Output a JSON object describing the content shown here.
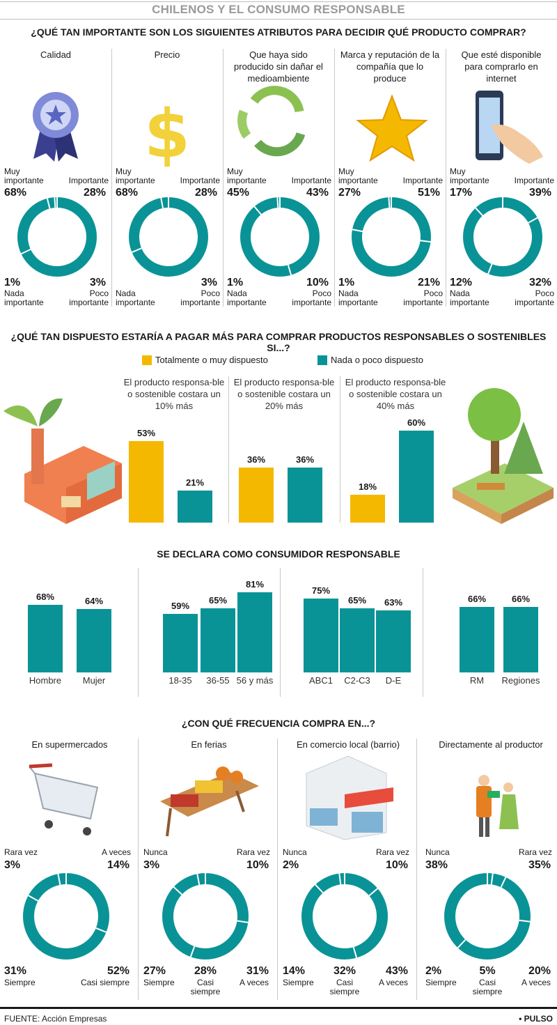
{
  "title": "CHILENOS Y EL CONSUMO RESPONSABLE",
  "colors": {
    "teal": "#0a9396",
    "yellow": "#f5b800",
    "grey_title": "#9a9a9a"
  },
  "footer": {
    "source": "FUENTE: Acción Empresas",
    "brand": "• PULSO"
  },
  "labels": {
    "muy": "Muy importante",
    "imp": "Importante",
    "nada": "Nada importante",
    "poco": "Poco importante",
    "rara": "Rara vez",
    "aveces": "A veces",
    "siempre": "Siempre",
    "casi": "Casi siempre",
    "nunca": "Nunca"
  },
  "section1": {
    "heading": "¿QUÉ TAN IMPORTANTE SON LOS SIGUIENTES ATRIBUTOS PARA DECIDIR QUÉ PRODUCTO COMPRAR?",
    "columns": [
      {
        "title": "Calidad",
        "icon": "medal-icon",
        "muy": "68%",
        "imp": "28%",
        "nada": "1%",
        "poco": "3%"
      },
      {
        "title": "Precio",
        "icon": "dollar-icon",
        "muy": "68%",
        "imp": "28%",
        "nada": "",
        "poco": "3%"
      },
      {
        "title": "Que haya sido producido sin dañar el medioambiente",
        "icon": "recycle-icon",
        "muy": "45%",
        "imp": "43%",
        "nada": "1%",
        "poco": "10%"
      },
      {
        "title": "Marca y reputación de la compañía que lo produce",
        "icon": "star-icon",
        "muy": "27%",
        "imp": "51%",
        "nada": "1%",
        "poco": "21%"
      },
      {
        "title": "Que esté disponible para comprarlo en internet",
        "icon": "smartphone-icon",
        "muy": "17%",
        "imp": "39%",
        "nada": "12%",
        "poco": "32%"
      }
    ]
  },
  "section2": {
    "heading": "¿QUÉ TAN DISPUESTO ESTARÍA A PAGAR MÁS PARA COMPRAR PRODUCTOS RESPONSABLES O SOSTENIBLES SI...?",
    "legend_yellow": "Totalmente o muy dispuesto",
    "legend_teal": "Nada o poco dispuesto",
    "scenarios": [
      {
        "title": "El producto responsa-ble o sostenible costara un 10% más",
        "yellow": "53%",
        "teal": "21%"
      },
      {
        "title": "El producto responsa-ble o sostenible costara un 20% más",
        "yellow": "36%",
        "teal": "36%"
      },
      {
        "title": "El producto responsa-ble o sostenible costara un 40% más",
        "yellow": "18%",
        "teal": "60%"
      }
    ]
  },
  "section3": {
    "heading": "SE DECLARA COMO CONSUMIDOR RESPONSABLE",
    "bars": [
      {
        "cat": "Hombre",
        "val": "68%"
      },
      {
        "cat": "Mujer",
        "val": "64%"
      },
      {
        "cat": "18-35",
        "val": "59%"
      },
      {
        "cat": "36-55",
        "val": "65%"
      },
      {
        "cat": "56 y más",
        "val": "81%"
      },
      {
        "cat": "ABC1",
        "val": "75%"
      },
      {
        "cat": "C2-C3",
        "val": "65%"
      },
      {
        "cat": "D-E",
        "val": "63%"
      },
      {
        "cat": "RM",
        "val": "66%"
      },
      {
        "cat": "Regiones",
        "val": "66%"
      }
    ]
  },
  "section4": {
    "heading": "¿CON QUÉ FRECUENCIA COMPRA EN...?",
    "columns": [
      {
        "title": "En supermercados",
        "icon": "shopping-cart-icon",
        "tl_label": "Rara vez",
        "tl": "3%",
        "tr_label": "A veces",
        "tr": "14%",
        "bl_label": "Siempre",
        "bl": "31%",
        "bm_label": "",
        "bm": "",
        "br_label": "Casi siempre",
        "br": "52%"
      },
      {
        "title": "En ferias",
        "icon": "market-stall-icon",
        "tl_label": "Nunca",
        "tl": "3%",
        "tr_label": "Rara vez",
        "tr": "10%",
        "bl_label": "Siempre",
        "bl": "27%",
        "bm_label": "Casi siempre",
        "bm": "28%",
        "br_label": "A veces",
        "br": "31%"
      },
      {
        "title": "En comercio local (barrio)",
        "icon": "store-icon",
        "tl_label": "Nunca",
        "tl": "2%",
        "tr_label": "Rara vez",
        "tr": "10%",
        "bl_label": "Siempre",
        "bl": "14%",
        "bm_label": "Casi siempre",
        "bm": "32%",
        "br_label": "A veces",
        "br": "43%"
      },
      {
        "title": "Directamente al productor",
        "icon": "farmer-icon",
        "tl_label": "Nunca",
        "tl": "38%",
        "tr_label": "Rara vez",
        "tr": "35%",
        "bl_label": "Siempre",
        "bl": "2%",
        "bm_label": "Casi siempre",
        "bm": "5%",
        "br_label": "A veces",
        "br": "20%"
      }
    ]
  },
  "chart_data": [
    {
      "type": "pie",
      "title": "¿QUÉ TAN IMPORTANTE SON LOS SIGUIENTES ATRIBUTOS PARA DECIDIR QUÉ PRODUCTO COMPRAR?",
      "categories": [
        "Calidad",
        "Precio",
        "Que haya sido producido sin dañar el medioambiente",
        "Marca y reputación de la compañía que lo produce",
        "Que esté disponible para comprarlo en internet"
      ],
      "series": [
        {
          "name": "Muy importante",
          "values": [
            68,
            68,
            45,
            27,
            17
          ]
        },
        {
          "name": "Importante",
          "values": [
            28,
            28,
            43,
            51,
            39
          ]
        },
        {
          "name": "Poco importante",
          "values": [
            3,
            3,
            10,
            21,
            32
          ]
        },
        {
          "name": "Nada importante",
          "values": [
            1,
            0,
            1,
            1,
            12
          ]
        }
      ]
    },
    {
      "type": "bar",
      "title": "¿QUÉ TAN DISPUESTO ESTARÍA A PAGAR MÁS PARA COMPRAR PRODUCTOS RESPONSABLES O SOSTENIBLES SI...?",
      "categories": [
        "10% más",
        "20% más",
        "40% más"
      ],
      "series": [
        {
          "name": "Totalmente o muy dispuesto",
          "values": [
            53,
            36,
            18
          ]
        },
        {
          "name": "Nada o poco dispuesto",
          "values": [
            21,
            36,
            60
          ]
        }
      ],
      "ylim": [
        0,
        70
      ]
    },
    {
      "type": "bar",
      "title": "SE DECLARA COMO CONSUMIDOR RESPONSABLE",
      "categories": [
        "Hombre",
        "Mujer",
        "18-35",
        "36-55",
        "56 y más",
        "ABC1",
        "C2-C3",
        "D-E",
        "RM",
        "Regiones"
      ],
      "values": [
        68,
        64,
        59,
        65,
        81,
        75,
        65,
        63,
        66,
        66
      ],
      "ylim": [
        0,
        100
      ]
    },
    {
      "type": "pie",
      "title": "¿CON QUÉ FRECUENCIA COMPRA EN...?",
      "categories": [
        "En supermercados",
        "En ferias",
        "En comercio local (barrio)",
        "Directamente al productor"
      ],
      "series": [
        {
          "name": "Siempre",
          "values": [
            31,
            27,
            14,
            2
          ]
        },
        {
          "name": "Casi siempre",
          "values": [
            52,
            28,
            32,
            5
          ]
        },
        {
          "name": "A veces",
          "values": [
            14,
            31,
            43,
            20
          ]
        },
        {
          "name": "Rara vez",
          "values": [
            3,
            10,
            10,
            35
          ]
        },
        {
          "name": "Nunca",
          "values": [
            0,
            3,
            2,
            38
          ]
        }
      ]
    }
  ]
}
